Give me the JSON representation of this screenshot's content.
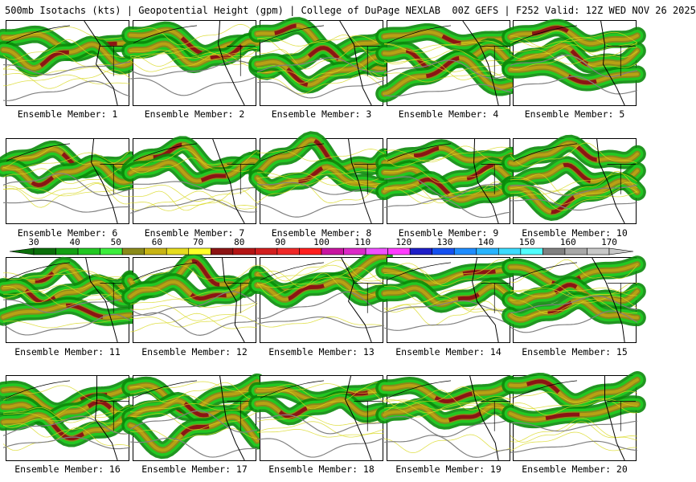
{
  "header": {
    "product": "500mb Isotachs (kts)",
    "sep1": "|",
    "field": "Geopotential Height (gpm)",
    "sep2": "|",
    "source": "College of DuPage NEXLAB",
    "run": "00Z GEFS",
    "sep3": "|",
    "forecast_hour": "F252",
    "valid": "Valid: 12Z WED NOV 26 2025"
  },
  "colorbar": {
    "labels": [
      "30",
      "40",
      "50",
      "60",
      "70",
      "80",
      "90",
      "100",
      "110",
      "120",
      "130",
      "140",
      "150",
      "160",
      "170"
    ],
    "colors": [
      "#0a6e0a",
      "#13a013",
      "#22c822",
      "#3cee3c",
      "#8a8a1a",
      "#c8b414",
      "#e6dc1e",
      "#ffff28",
      "#8c1414",
      "#b41414",
      "#d21e1e",
      "#f02828",
      "#ff1e1e",
      "#c814a0",
      "#dc28c8",
      "#f050ff",
      "#ff3cff",
      "#1e1ec8",
      "#1450f0",
      "#1e8cff",
      "#28b4ff",
      "#3cdcff",
      "#50ffff",
      "#808080",
      "#a8a8a8",
      "#c8c8c8"
    ]
  },
  "contour_color": "#808080",
  "members": [
    {
      "label": "Ensemble Member: 1"
    },
    {
      "label": "Ensemble Member: 2"
    },
    {
      "label": "Ensemble Member: 3"
    },
    {
      "label": "Ensemble Member: 4"
    },
    {
      "label": "Ensemble Member: 5"
    },
    {
      "label": "Ensemble Member: 6"
    },
    {
      "label": "Ensemble Member: 7"
    },
    {
      "label": "Ensemble Member: 8"
    },
    {
      "label": "Ensemble Member: 9"
    },
    {
      "label": "Ensemble Member: 10"
    },
    {
      "label": "Ensemble Member: 11"
    },
    {
      "label": "Ensemble Member: 12"
    },
    {
      "label": "Ensemble Member: 13"
    },
    {
      "label": "Ensemble Member: 14"
    },
    {
      "label": "Ensemble Member: 15"
    },
    {
      "label": "Ensemble Member: 16"
    },
    {
      "label": "Ensemble Member: 17"
    },
    {
      "label": "Ensemble Member: 18"
    },
    {
      "label": "Ensemble Member: 19"
    },
    {
      "label": "Ensemble Member: 20"
    }
  ]
}
